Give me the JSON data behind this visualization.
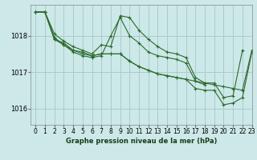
{
  "background_color": "#cce8e8",
  "grid_color": "#aacccc",
  "line_color": "#2d6a2d",
  "xlabel": "Graphe pression niveau de la mer (hPa)",
  "xlim": [
    -0.5,
    23
  ],
  "ylim": [
    1015.55,
    1018.85
  ],
  "yticks": [
    1016,
    1017,
    1018
  ],
  "xtick_labels": [
    "0",
    "1",
    "2",
    "3",
    "4",
    "5",
    "6",
    "7",
    "8",
    "9",
    "10",
    "11",
    "12",
    "13",
    "14",
    "15",
    "16",
    "17",
    "18",
    "19",
    "20",
    "21",
    "22",
    "23"
  ],
  "series": [
    {
      "x": [
        0,
        1,
        2,
        3,
        4,
        5,
        6,
        7,
        8,
        9,
        10,
        11,
        12,
        13,
        14,
        15,
        16,
        17,
        18,
        19,
        20,
        21,
        22
      ],
      "y": [
        1018.65,
        1018.65,
        1018.05,
        1017.85,
        1017.7,
        1017.6,
        1017.5,
        1017.75,
        1017.7,
        1018.55,
        1018.5,
        1018.15,
        1017.9,
        1017.7,
        1017.55,
        1017.5,
        1017.4,
        1016.85,
        1016.7,
        1016.7,
        1016.3,
        1016.35,
        1017.6
      ]
    },
    {
      "x": [
        0,
        1,
        2,
        3,
        4,
        5,
        6,
        7,
        8,
        9,
        10,
        11,
        12,
        13,
        14,
        15,
        16,
        17,
        18
      ],
      "y": [
        1018.65,
        1018.65,
        1017.95,
        1017.75,
        1017.55,
        1017.45,
        1017.4,
        1017.45,
        1018.0,
        1018.5,
        1018.0,
        1017.8,
        1017.55,
        1017.45,
        1017.4,
        1017.35,
        1017.25,
        1016.75,
        1016.65
      ]
    },
    {
      "x": [
        0,
        1,
        2,
        3,
        4,
        5,
        6,
        7,
        8,
        9,
        10,
        11,
        12,
        13,
        14,
        15,
        16,
        17,
        18,
        19,
        20,
        21,
        22,
        23
      ],
      "y": [
        1018.65,
        1018.65,
        1017.9,
        1017.8,
        1017.6,
        1017.55,
        1017.45,
        1017.5,
        1017.5,
        1017.5,
        1017.3,
        1017.15,
        1017.05,
        1016.95,
        1016.9,
        1016.85,
        1016.8,
        1016.75,
        1016.7,
        1016.65,
        1016.6,
        1016.55,
        1016.5,
        1017.6
      ]
    },
    {
      "x": [
        0,
        1,
        2,
        3,
        4,
        5,
        6,
        7,
        8,
        9,
        10,
        11,
        12,
        13,
        14,
        15,
        16,
        17,
        18,
        19,
        20,
        21,
        22,
        23
      ],
      "y": [
        1018.65,
        1018.65,
        1017.9,
        1017.75,
        1017.6,
        1017.5,
        1017.45,
        1017.5,
        1017.5,
        1017.5,
        1017.3,
        1017.15,
        1017.05,
        1016.95,
        1016.9,
        1016.85,
        1016.8,
        1016.55,
        1016.5,
        1016.5,
        1016.1,
        1016.15,
        1016.3,
        1017.55
      ]
    }
  ]
}
